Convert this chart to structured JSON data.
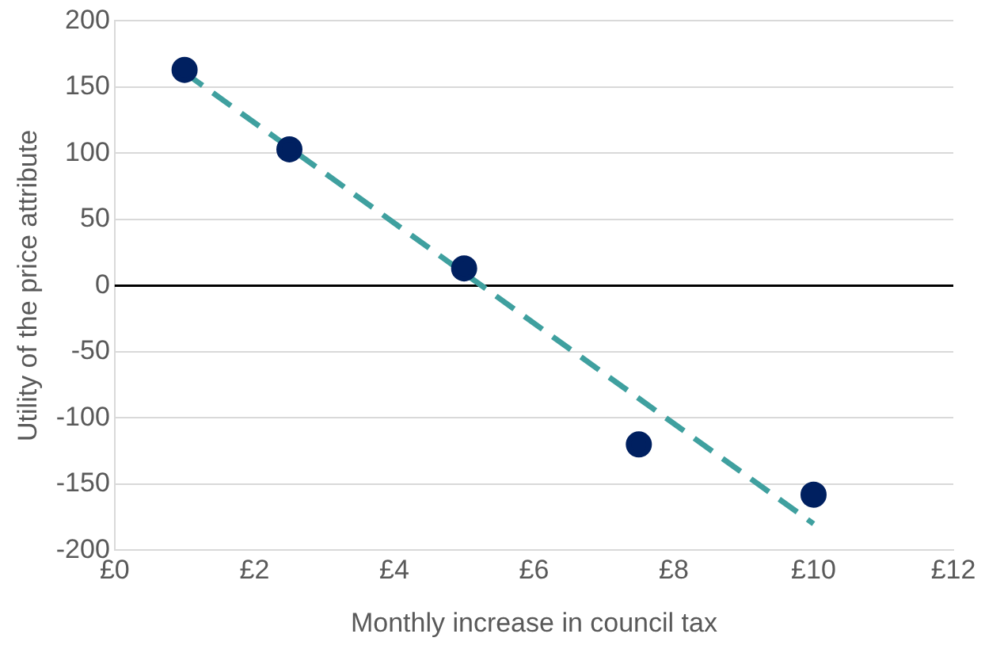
{
  "chart_data": {
    "type": "scatter",
    "xlabel": "Monthly increase in council tax",
    "ylabel": "Utility of the price attribute",
    "xlim": [
      0,
      12
    ],
    "xticks": [
      {
        "value": 0,
        "label": "£0"
      },
      {
        "value": 2,
        "label": "£2"
      },
      {
        "value": 4,
        "label": "£4"
      },
      {
        "value": 6,
        "label": "£6"
      },
      {
        "value": 8,
        "label": "£8"
      },
      {
        "value": 10,
        "label": "£10"
      },
      {
        "value": 12,
        "label": "£12"
      }
    ],
    "ylim": [
      -200,
      200
    ],
    "yticks": [
      -200,
      -150,
      -100,
      -50,
      0,
      50,
      100,
      150,
      200
    ],
    "grid": "y",
    "legend": false,
    "marker": "circle",
    "ref_lines": [
      {
        "axis": "y",
        "value": 0,
        "color": "#000000"
      }
    ],
    "series": [
      {
        "type": "scatter",
        "color": "#002060",
        "x": [
          1,
          2.5,
          5,
          7.5,
          10
        ],
        "values": [
          163,
          103,
          13,
          -120,
          -158
        ]
      },
      {
        "type": "line",
        "color": "#3fa09f",
        "line_style": "dashed",
        "marker": "none",
        "x": [
          1,
          10
        ],
        "values": [
          161,
          -180
        ]
      }
    ]
  }
}
